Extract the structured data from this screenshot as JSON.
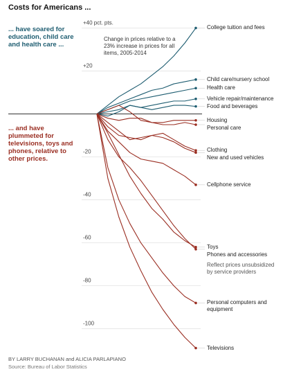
{
  "chart_data": {
    "type": "line",
    "title": "Costs for Americans ...",
    "annotations": {
      "up": "... have soared for education, child care and health care ...",
      "down": "... and have plummeted for televisions, toys and phones, relative to other prices.",
      "note": "Change in prices relative to a 23% increase in prices for all items, 2005-2014",
      "phones_note": "Reflect prices unsubsidized by service providers"
    },
    "byline": "BY LARRY BUCHANAN and ALICIA PARLAPIANO",
    "source": "Source: Bureau of Labor Statistics",
    "categories": [
      null,
      null,
      null,
      null,
      null,
      null,
      null,
      null,
      null,
      null
    ],
    "ylim": [
      -113,
      44
    ],
    "yticks": [
      {
        "value": 40,
        "label": "+40 pct. pts."
      },
      {
        "value": 20,
        "label": "+20"
      },
      -20,
      -40,
      -60,
      -80,
      -100
    ],
    "series": [
      {
        "name": "College tuition and fees",
        "color": "#1d5c70",
        "values": [
          0,
          4,
          8,
          11,
          14,
          18,
          22,
          27,
          33,
          40
        ]
      },
      {
        "name": "Child care/nursery school",
        "color": "#1d5c70",
        "values": [
          0,
          3,
          5,
          7,
          9,
          11,
          12,
          14,
          15,
          16
        ]
      },
      {
        "name": "Health care",
        "color": "#1d5c70",
        "values": [
          0,
          2,
          4,
          6,
          7,
          8,
          9,
          10,
          11,
          12
        ]
      },
      {
        "name": "Vehicle repair/maintenance",
        "color": "#1d5c70",
        "values": [
          0,
          1,
          2,
          4,
          3,
          4,
          5,
          6,
          6,
          7
        ]
      },
      {
        "name": "Food and beverages",
        "color": "#1d5c70",
        "values": [
          0,
          -1,
          1,
          4,
          3,
          2,
          3,
          4,
          4,
          3.5
        ]
      },
      {
        "name": "Housing",
        "color": "#9a2e22",
        "values": [
          0,
          2,
          4,
          1,
          -3,
          -4,
          -4,
          -3,
          -3,
          -3
        ]
      },
      {
        "name": "Personal care",
        "color": "#9a2e22",
        "values": [
          0,
          -2,
          -3,
          -2,
          -2,
          -4,
          -5,
          -5,
          -4,
          -5
        ]
      },
      {
        "name": "Clothing",
        "color": "#9a2e22",
        "values": [
          0,
          -6,
          -10,
          -11,
          -12,
          -10,
          -9,
          -12,
          -15,
          -17
        ]
      },
      {
        "name": "New and used vehicles",
        "color": "#9a2e22",
        "values": [
          0,
          -4,
          -8,
          -12,
          -11,
          -10,
          -11,
          -13,
          -16,
          -18
        ]
      },
      {
        "name": "Cellphone service",
        "color": "#9a2e22",
        "values": [
          0,
          -8,
          -13,
          -18,
          -21,
          -22,
          -23,
          -26,
          -29,
          -33
        ]
      },
      {
        "name": "Toys",
        "color": "#9a2e22",
        "values": [
          0,
          -9,
          -19,
          -29,
          -37,
          -44,
          -49,
          -55,
          -59,
          -62
        ]
      },
      {
        "name": "Phones and accessories",
        "color": "#9a2e22",
        "values": [
          0,
          -12,
          -20,
          -25,
          -31,
          -38,
          -45,
          -52,
          -58,
          -63
        ]
      },
      {
        "name": "Personal computers and equipment",
        "color": "#9a2e22",
        "values": [
          0,
          -25,
          -40,
          -51,
          -60,
          -67,
          -74,
          -80,
          -85,
          -88
        ]
      },
      {
        "name": "Televisions",
        "color": "#9a2e22",
        "values": [
          0,
          -30,
          -48,
          -62,
          -73,
          -83,
          -91,
          -98,
          -104,
          -109
        ]
      }
    ]
  }
}
